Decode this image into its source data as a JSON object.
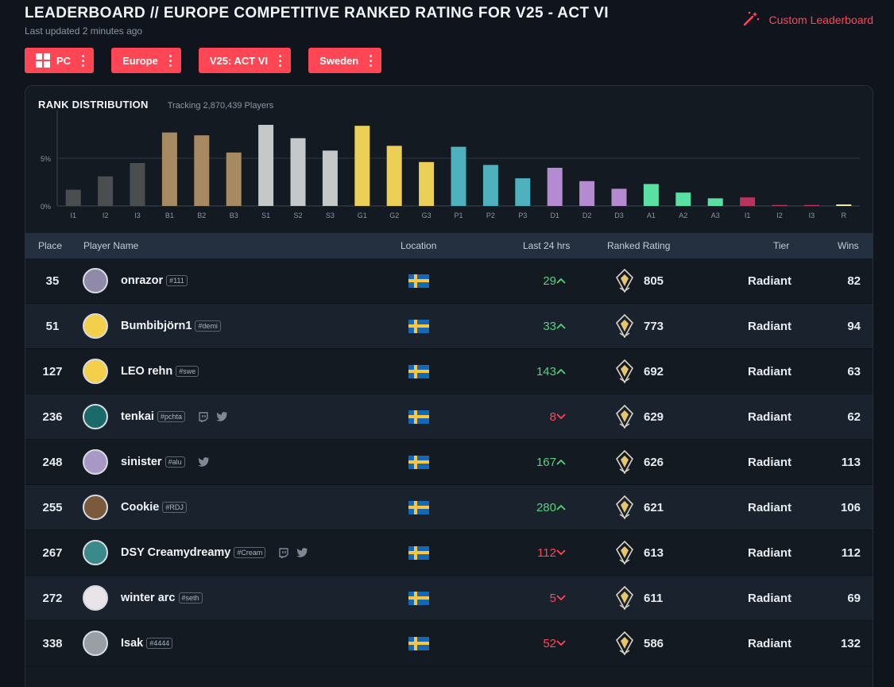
{
  "header": {
    "title": "LEADERBOARD // EUROPE COMPETITIVE RANKED RATING FOR V25 - ACT VI",
    "updated": "Last updated 2 minutes ago",
    "custom_leaderboard": "Custom Leaderboard"
  },
  "filters": [
    {
      "label": "PC",
      "icon": "windows-icon"
    },
    {
      "label": "Europe"
    },
    {
      "label": "V25: ACT VI"
    },
    {
      "label": "Sweden"
    }
  ],
  "distribution": {
    "title": "RANK DISTRIBUTION",
    "tracking": "Tracking 2,870,439 Players"
  },
  "chart_data": {
    "type": "bar",
    "categories": [
      "I1",
      "I2",
      "I3",
      "B1",
      "B2",
      "B3",
      "S1",
      "S2",
      "S3",
      "G1",
      "G2",
      "G3",
      "P1",
      "P2",
      "P3",
      "D1",
      "D2",
      "D3",
      "A1",
      "A2",
      "A3",
      "I1",
      "I2",
      "I3",
      "R"
    ],
    "values": [
      1.7,
      3.1,
      4.5,
      7.7,
      7.4,
      5.6,
      8.5,
      7.1,
      5.8,
      8.4,
      6.3,
      4.6,
      6.2,
      4.3,
      2.9,
      4.0,
      2.6,
      1.8,
      2.3,
      1.4,
      0.8,
      0.9,
      0.1,
      0.1,
      0.15
    ],
    "colors": [
      "#4b4e4e",
      "#4b4e4e",
      "#4b4e4e",
      "#a88a62",
      "#a88a62",
      "#a88a62",
      "#c4c8c8",
      "#c4c8c8",
      "#c4c8c8",
      "#eccf56",
      "#eccf56",
      "#eccf56",
      "#4fb1bd",
      "#4fb1bd",
      "#4fb1bd",
      "#b48ad0",
      "#b48ad0",
      "#b48ad0",
      "#5be0a3",
      "#5be0a3",
      "#5be0a3",
      "#b8345a",
      "#b8345a",
      "#b8345a",
      "#fffbb5"
    ],
    "yticks": [
      "0%",
      "5%"
    ],
    "ylim": [
      0,
      10
    ]
  },
  "table": {
    "headers": {
      "place": "Place",
      "player": "Player Name",
      "location": "Location",
      "last24": "Last 24 hrs",
      "rating": "Ranked Rating",
      "tier": "Tier",
      "wins": "Wins"
    },
    "rows": [
      {
        "place": "35",
        "name": "onrazor",
        "tag": "#111",
        "delta": "29",
        "dir": "up",
        "rating": "805",
        "tier": "Radiant",
        "wins": "82",
        "social": []
      },
      {
        "place": "51",
        "name": "Bumbibjörn1",
        "tag": "#demi",
        "delta": "33",
        "dir": "up",
        "rating": "773",
        "tier": "Radiant",
        "wins": "94",
        "social": []
      },
      {
        "place": "127",
        "name": "LEO rehn",
        "tag": "#swe",
        "delta": "143",
        "dir": "up",
        "rating": "692",
        "tier": "Radiant",
        "wins": "63",
        "social": []
      },
      {
        "place": "236",
        "name": "tenkai",
        "tag": "#pchta",
        "delta": "8",
        "dir": "down",
        "rating": "629",
        "tier": "Radiant",
        "wins": "62",
        "social": [
          "twitch-icon",
          "twitter-icon"
        ]
      },
      {
        "place": "248",
        "name": "sinister",
        "tag": "#alu",
        "delta": "167",
        "dir": "up",
        "rating": "626",
        "tier": "Radiant",
        "wins": "113",
        "social": [
          "twitter-icon"
        ]
      },
      {
        "place": "255",
        "name": "Cookie",
        "tag": "#RDJ",
        "delta": "280",
        "dir": "up",
        "rating": "621",
        "tier": "Radiant",
        "wins": "106",
        "social": []
      },
      {
        "place": "267",
        "name": "DSY Creamydreamy",
        "tag": "#Cream",
        "delta": "112",
        "dir": "down",
        "rating": "613",
        "tier": "Radiant",
        "wins": "112",
        "social": [
          "twitch-icon",
          "twitter-icon"
        ]
      },
      {
        "place": "272",
        "name": "winter arc",
        "tag": "#seth",
        "delta": "5",
        "dir": "down",
        "rating": "611",
        "tier": "Radiant",
        "wins": "69",
        "social": []
      },
      {
        "place": "338",
        "name": "Isak",
        "tag": "#4444",
        "delta": "52",
        "dir": "down",
        "rating": "586",
        "tier": "Radiant",
        "wins": "132",
        "social": []
      }
    ]
  },
  "colors": {
    "accent": "#ff4655",
    "up": "#56d27d",
    "down": "#ff4655"
  }
}
